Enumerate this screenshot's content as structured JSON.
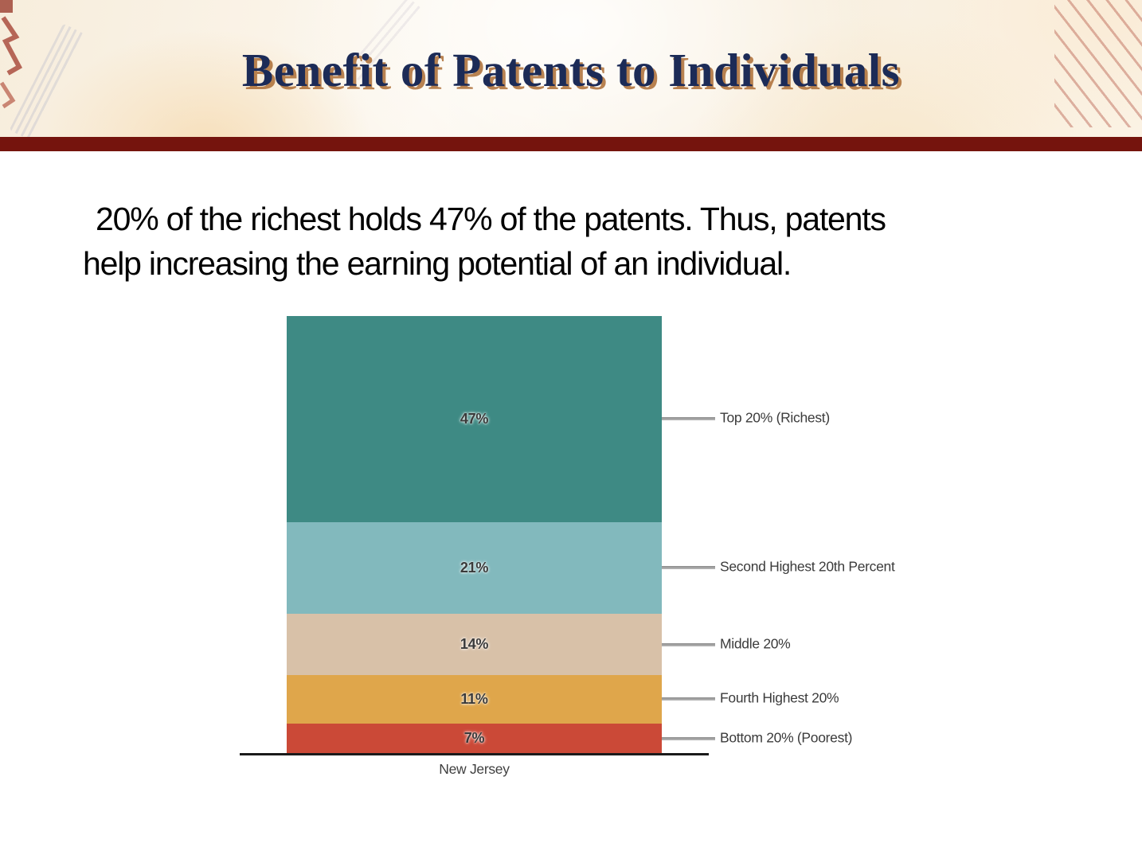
{
  "header": {
    "title": "Benefit of Patents to Individuals"
  },
  "body": {
    "paragraph_line1": "20% of the richest holds 47% of the patents. Thus, patents",
    "paragraph_line2": "help increasing the earning potential of an individual."
  },
  "chart_data": {
    "type": "bar",
    "subtype": "stacked-percentage-column",
    "title": "",
    "categories": [
      "New Jersey"
    ],
    "xlabel": "New Jersey",
    "ylabel": "",
    "grid": false,
    "legend_position": "right-callouts",
    "series": [
      {
        "name": "Top 20% (Richest)",
        "value": 47,
        "label": "47%",
        "color": "#3e8a84"
      },
      {
        "name": "Second Highest 20th Percent",
        "value": 21,
        "label": "21%",
        "color": "#82b9bd"
      },
      {
        "name": "Middle 20%",
        "value": 14,
        "label": "14%",
        "color": "#d8c1a8"
      },
      {
        "name": "Fourth Highest 20%",
        "value": 11,
        "label": "11%",
        "color": "#dfa64b"
      },
      {
        "name": "Bottom 20% (Poorest)",
        "value": 7,
        "label": "7%",
        "color": "#cb4937"
      }
    ]
  },
  "colors": {
    "divider": "#75140d",
    "title_text": "#1c2b57",
    "title_shadow": "#ac6c34",
    "axis": "#1b1b1b"
  }
}
